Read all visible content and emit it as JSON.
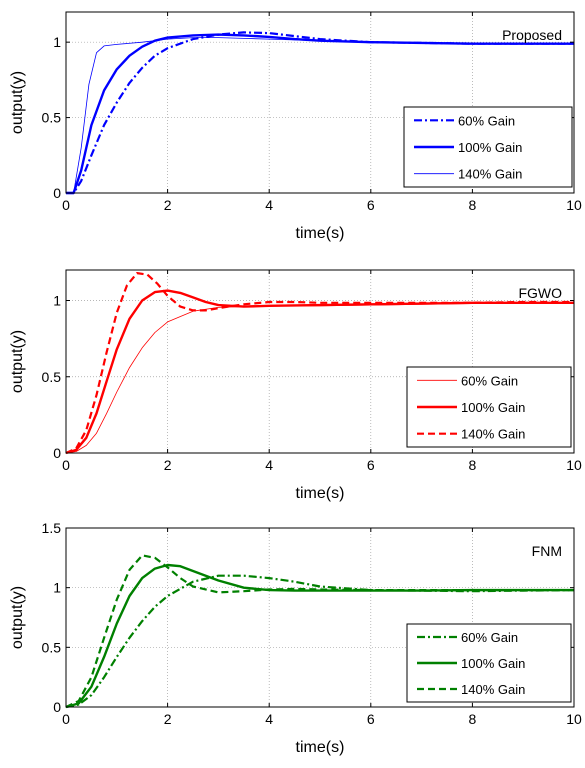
{
  "chart_data": [
    {
      "type": "line",
      "title": "Proposed",
      "xlabel": "time(s)",
      "ylabel": "output(y)",
      "xlim": [
        0,
        10
      ],
      "ylim": [
        0,
        1.2
      ],
      "xticks": [
        0,
        2,
        4,
        6,
        8,
        10
      ],
      "yticks": [
        0,
        0.5,
        1
      ],
      "grid": true,
      "legend_position": "lower-right",
      "series": [
        {
          "name": "60% Gain",
          "color": "#0000ff",
          "style": "dashdot",
          "x": [
            0,
            0.15,
            0.3,
            0.5,
            0.75,
            1,
            1.25,
            1.5,
            1.75,
            2,
            2.5,
            3,
            3.5,
            4,
            4.5,
            5,
            6,
            7,
            8,
            9,
            10
          ],
          "y": [
            0,
            0,
            0.08,
            0.25,
            0.45,
            0.6,
            0.73,
            0.83,
            0.91,
            0.96,
            1.02,
            1.05,
            1.065,
            1.06,
            1.04,
            1.02,
            1.0,
            0.995,
            0.99,
            0.99,
            0.99
          ]
        },
        {
          "name": "100% Gain",
          "color": "#0000ff",
          "style": "solid",
          "x": [
            0,
            0.15,
            0.3,
            0.5,
            0.75,
            1,
            1.25,
            1.5,
            1.75,
            2,
            2.5,
            3,
            3.5,
            4,
            4.5,
            5,
            6,
            7,
            8,
            9,
            10
          ],
          "y": [
            0,
            0,
            0.15,
            0.45,
            0.68,
            0.82,
            0.91,
            0.97,
            1.01,
            1.03,
            1.045,
            1.05,
            1.045,
            1.035,
            1.02,
            1.01,
            1.0,
            0.995,
            0.99,
            0.99,
            0.99
          ]
        },
        {
          "name": "140%  Gain",
          "color": "#0000ff",
          "style": "thin",
          "x": [
            0,
            0.15,
            0.3,
            0.45,
            0.6,
            0.75,
            1,
            1.5,
            2,
            2.5,
            3,
            3.5,
            4,
            5,
            6,
            7,
            8,
            9,
            10
          ],
          "y": [
            0,
            0,
            0.3,
            0.72,
            0.93,
            0.975,
            0.985,
            1.0,
            1.02,
            1.03,
            1.03,
            1.025,
            1.02,
            1.01,
            1.0,
            0.995,
            0.99,
            0.99,
            0.99
          ]
        }
      ]
    },
    {
      "type": "line",
      "title": "FGWO",
      "xlabel": "time(s)",
      "ylabel": "output(y)",
      "xlim": [
        0,
        10
      ],
      "ylim": [
        0,
        1.2
      ],
      "xticks": [
        0,
        2,
        4,
        6,
        8,
        10
      ],
      "yticks": [
        0,
        0.5,
        1
      ],
      "grid": true,
      "legend_position": "lower-right",
      "series": [
        {
          "name": "60% Gain",
          "color": "#ff0000",
          "style": "thin",
          "x": [
            0,
            0.2,
            0.4,
            0.6,
            0.8,
            1,
            1.25,
            1.5,
            1.75,
            2,
            2.5,
            3,
            3.5,
            4,
            5,
            6,
            7,
            8,
            9,
            10
          ],
          "y": [
            0,
            0.01,
            0.05,
            0.13,
            0.26,
            0.4,
            0.56,
            0.69,
            0.79,
            0.86,
            0.93,
            0.955,
            0.96,
            0.965,
            0.965,
            0.97,
            0.975,
            0.98,
            0.985,
            0.985
          ]
        },
        {
          "name": "100% Gain",
          "color": "#ff0000",
          "style": "solid",
          "x": [
            0,
            0.2,
            0.4,
            0.6,
            0.8,
            1,
            1.25,
            1.5,
            1.75,
            2,
            2.25,
            2.5,
            2.75,
            3,
            3.5,
            4,
            5,
            6,
            7,
            8,
            9,
            10
          ],
          "y": [
            0,
            0.02,
            0.1,
            0.26,
            0.47,
            0.68,
            0.88,
            1.0,
            1.055,
            1.065,
            1.05,
            1.02,
            0.99,
            0.97,
            0.96,
            0.965,
            0.97,
            0.975,
            0.98,
            0.985,
            0.985,
            0.985
          ]
        },
        {
          "name": "140% Gain",
          "color": "#ff0000",
          "style": "dashed",
          "x": [
            0,
            0.2,
            0.4,
            0.6,
            0.8,
            1,
            1.2,
            1.4,
            1.6,
            1.8,
            2,
            2.25,
            2.5,
            2.75,
            3,
            3.5,
            4,
            4.5,
            5,
            6,
            7,
            8,
            9,
            10
          ],
          "y": [
            0,
            0.03,
            0.15,
            0.38,
            0.66,
            0.92,
            1.1,
            1.18,
            1.17,
            1.11,
            1.03,
            0.96,
            0.935,
            0.935,
            0.95,
            0.975,
            0.99,
            0.99,
            0.985,
            0.985,
            0.985,
            0.985,
            0.99,
            0.99
          ]
        }
      ]
    },
    {
      "type": "line",
      "title": "FNM",
      "xlabel": "time(s)",
      "ylabel": "output(y)",
      "xlim": [
        0,
        10
      ],
      "ylim": [
        0,
        1.5
      ],
      "xticks": [
        0,
        2,
        4,
        6,
        8,
        10
      ],
      "yticks": [
        0,
        0.5,
        1,
        1.5
      ],
      "grid": true,
      "legend_position": "lower-right",
      "series": [
        {
          "name": "60%  Gain",
          "color": "#008000",
          "style": "dashdot",
          "x": [
            0,
            0.25,
            0.5,
            0.75,
            1,
            1.25,
            1.5,
            1.75,
            2,
            2.5,
            3,
            3.5,
            4,
            4.5,
            5,
            6,
            7,
            8,
            9,
            10
          ],
          "y": [
            0,
            0.02,
            0.1,
            0.25,
            0.42,
            0.58,
            0.72,
            0.84,
            0.93,
            1.05,
            1.1,
            1.1,
            1.08,
            1.05,
            1.01,
            0.98,
            0.975,
            0.97,
            0.975,
            0.98
          ]
        },
        {
          "name": "100% Gain",
          "color": "#008000",
          "style": "solid",
          "x": [
            0,
            0.25,
            0.5,
            0.75,
            1,
            1.25,
            1.5,
            1.75,
            2,
            2.25,
            2.5,
            3,
            3.5,
            4,
            4.5,
            5,
            6,
            7,
            8,
            9,
            10
          ],
          "y": [
            0,
            0.03,
            0.17,
            0.42,
            0.7,
            0.93,
            1.08,
            1.16,
            1.19,
            1.18,
            1.14,
            1.06,
            1.0,
            0.98,
            0.975,
            0.975,
            0.975,
            0.975,
            0.98,
            0.98,
            0.98
          ]
        },
        {
          "name": "140% Gain",
          "color": "#008000",
          "style": "dashed",
          "x": [
            0,
            0.25,
            0.5,
            0.75,
            1,
            1.25,
            1.5,
            1.75,
            2,
            2.25,
            2.5,
            3,
            3.5,
            4,
            4.5,
            5,
            6,
            7,
            8,
            9,
            10
          ],
          "y": [
            0,
            0.05,
            0.25,
            0.58,
            0.9,
            1.15,
            1.27,
            1.25,
            1.17,
            1.08,
            1.01,
            0.96,
            0.97,
            0.985,
            0.99,
            0.985,
            0.98,
            0.98,
            0.98,
            0.98,
            0.98
          ]
        }
      ]
    }
  ]
}
